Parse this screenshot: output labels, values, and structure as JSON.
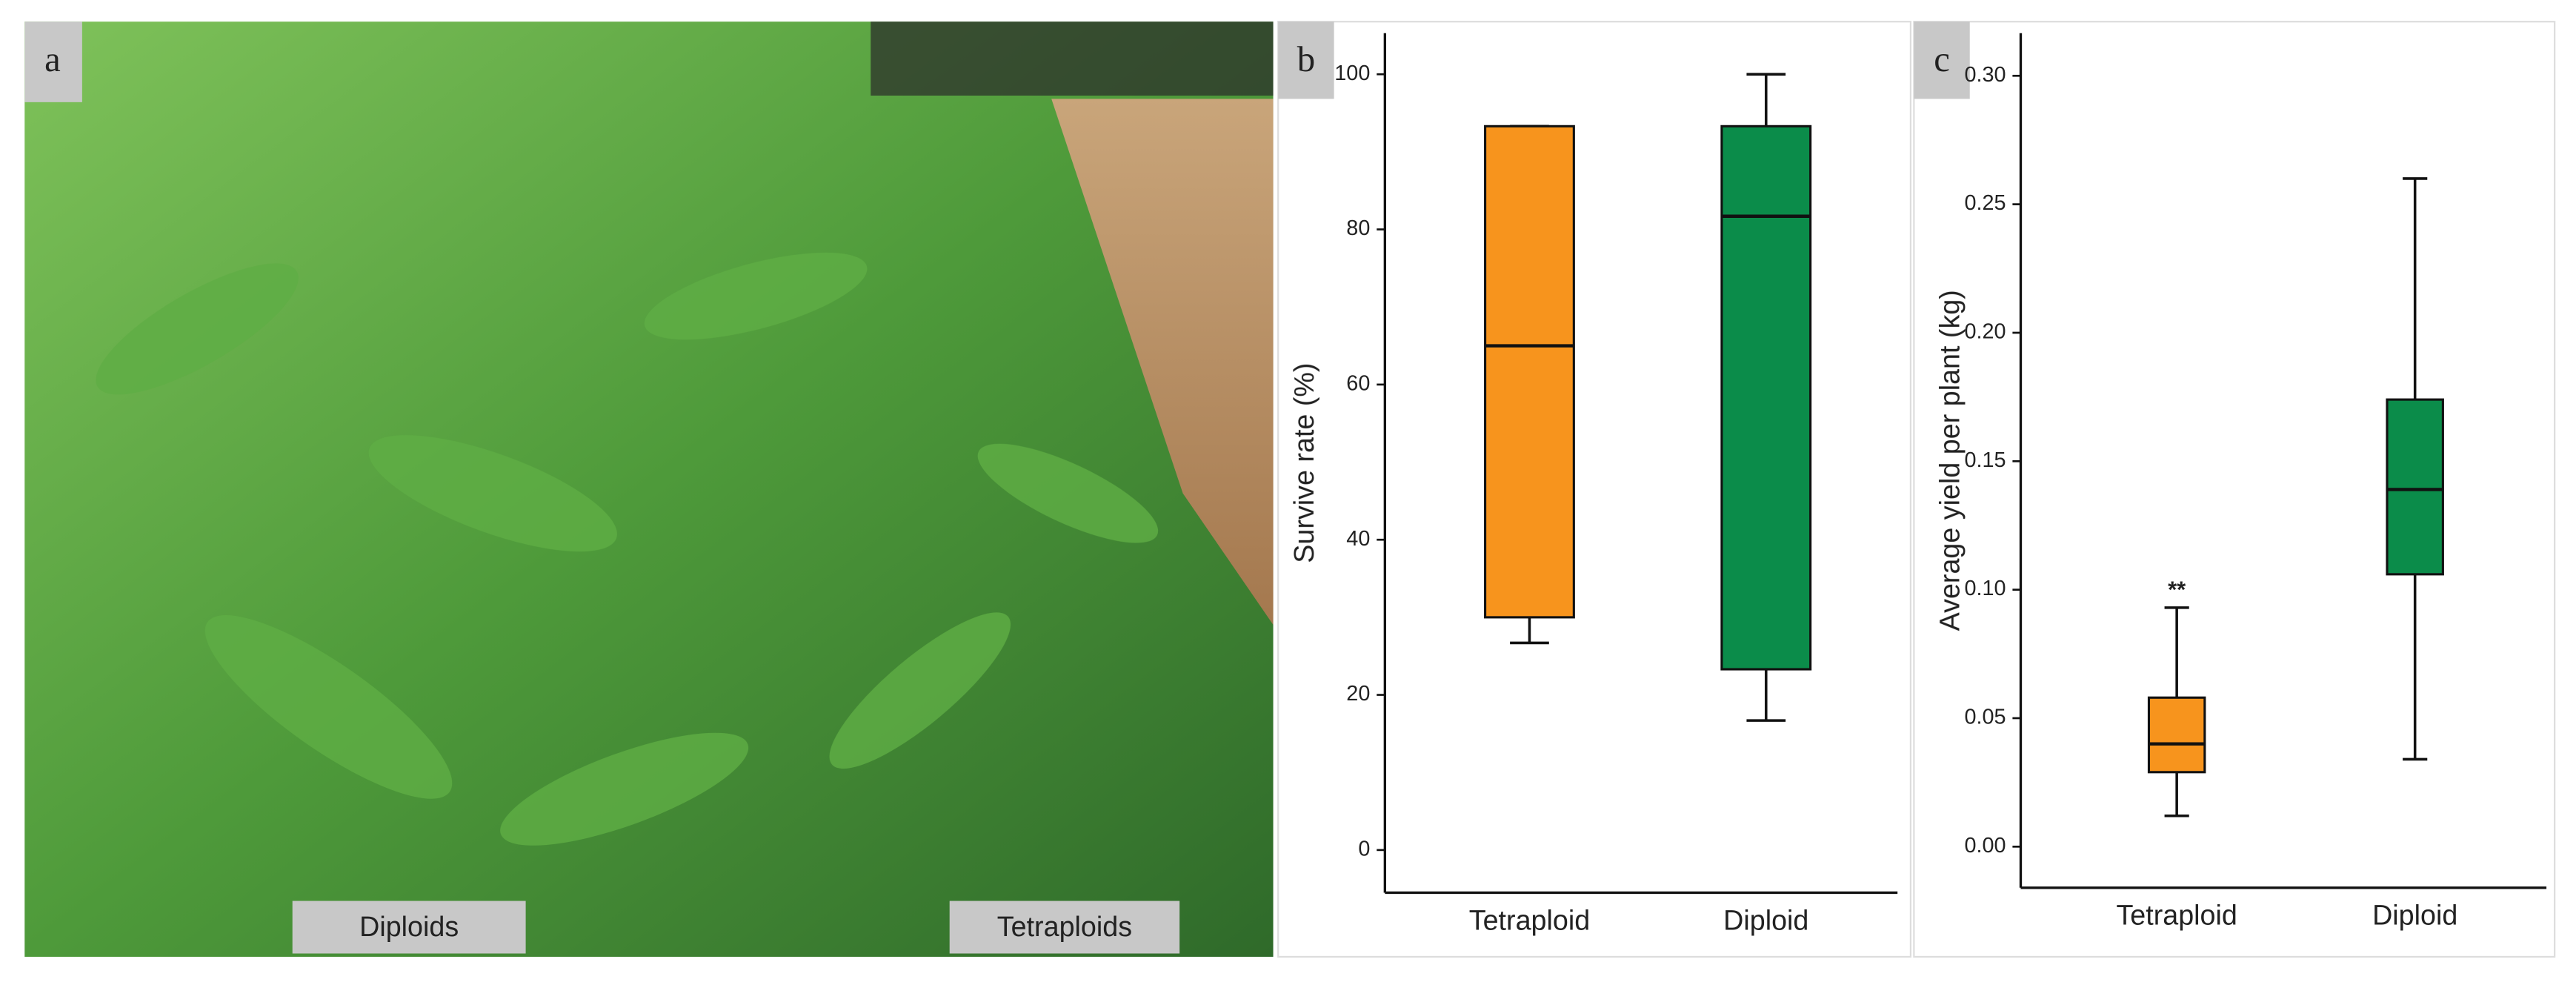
{
  "photo": {
    "panel_label": "a",
    "labels": [
      "Diploids",
      "Tetraploids"
    ]
  },
  "chart_data": [
    {
      "type": "box",
      "panel_label": "b",
      "ylabel": "Survive rate (%)",
      "categories": [
        "Tetraploid",
        "Diploid"
      ],
      "boxes": [
        {
          "min": 26.7,
          "q1": 30,
          "median": 65,
          "q3": 93.3,
          "max": 93.3,
          "color": "#f7941d"
        },
        {
          "min": 16.7,
          "q1": 23.3,
          "median": 81.7,
          "q3": 93.3,
          "max": 100,
          "color": "#0b8c4a"
        }
      ],
      "ylim": [
        -5.5,
        105.3
      ],
      "yticks": [
        0,
        20,
        40,
        60,
        80,
        100
      ]
    },
    {
      "type": "box",
      "panel_label": "c",
      "ylabel": "Average yield per plant (kg)",
      "categories": [
        "Tetraploid",
        "Diploid"
      ],
      "boxes": [
        {
          "min": 0.012,
          "q1": 0.029,
          "median": 0.04,
          "q3": 0.058,
          "max": 0.093,
          "color": "#f7941d"
        },
        {
          "min": 0.034,
          "q1": 0.106,
          "median": 0.139,
          "q3": 0.174,
          "max": 0.26,
          "color": "#0b8c4a"
        }
      ],
      "annotations": [
        "**",
        null
      ],
      "ylim": [
        -0.016,
        0.3166
      ],
      "yticks": [
        {
          "value": 0,
          "label": "0.00"
        },
        {
          "value": 0.05,
          "label": "0.05"
        },
        {
          "value": 0.1,
          "label": "0.10"
        },
        {
          "value": 0.15,
          "label": "0.15"
        },
        {
          "value": 0.2,
          "label": "0.20"
        },
        {
          "value": 0.25,
          "label": "0.25"
        },
        {
          "value": 0.3,
          "label": "0.30"
        }
      ]
    }
  ]
}
